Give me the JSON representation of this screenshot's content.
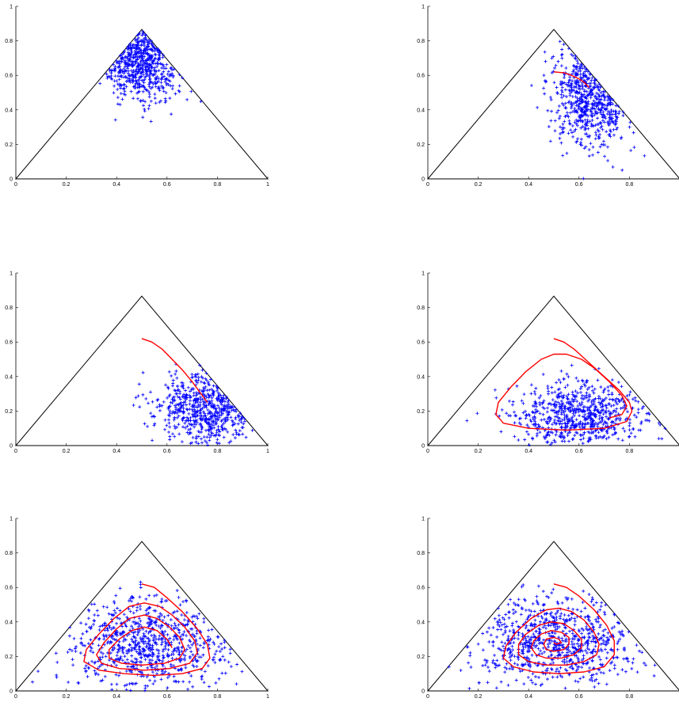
{
  "chart_data": [
    {
      "type": "scatter",
      "panel": "top-left",
      "x_ticks": [
        "0",
        "0.2",
        "0.4",
        "0.6",
        "0.8",
        "1"
      ],
      "y_ticks": [
        "0",
        "0.2",
        "0.4",
        "0.6",
        "0.8",
        "1"
      ],
      "xlim": [
        0,
        1
      ],
      "ylim": [
        0,
        1
      ],
      "simplex": [
        [
          0,
          0
        ],
        [
          1,
          0
        ],
        [
          0.5,
          0.866
        ]
      ],
      "cloud": {
        "n": 600,
        "cx": 0.5,
        "cy": 0.7,
        "sx": 0.08,
        "sy": 0.12
      },
      "trajectory": [],
      "colors": {
        "points": "#0000ff",
        "trajectory": "#ff0000",
        "simplex": "#000000"
      }
    },
    {
      "type": "scatter",
      "panel": "top-right",
      "x_ticks": [
        "0",
        "0.2",
        "0.4",
        "0.6",
        "0.8"
      ],
      "y_ticks": [
        "0",
        "0.2",
        "0.4",
        "0.6",
        "0.8",
        "1"
      ],
      "xlim": [
        0,
        1
      ],
      "ylim": [
        0,
        1
      ],
      "simplex": [
        [
          0,
          0
        ],
        [
          1,
          0
        ],
        [
          0.5,
          0.866
        ]
      ],
      "cloud": {
        "n": 600,
        "cx": 0.66,
        "cy": 0.52,
        "sx": 0.08,
        "sy": 0.16
      },
      "trajectory": [
        [
          0.5,
          0.62
        ],
        [
          0.54,
          0.615
        ],
        [
          0.57,
          0.6
        ],
        [
          0.6,
          0.58
        ],
        [
          0.62,
          0.56
        ],
        [
          0.64,
          0.53
        ]
      ],
      "colors": {
        "points": "#0000ff",
        "trajectory": "#ff0000",
        "simplex": "#000000"
      }
    },
    {
      "type": "scatter",
      "panel": "middle-left",
      "x_ticks": [
        "0",
        "0.2",
        "0.4",
        "0.6",
        "0.8",
        "1"
      ],
      "y_ticks": [
        "0",
        "0.2",
        "0.4",
        "0.6",
        "0.8",
        "1"
      ],
      "xlim": [
        0,
        1
      ],
      "ylim": [
        0,
        1
      ],
      "simplex": [
        [
          0,
          0
        ],
        [
          1,
          0
        ],
        [
          0.5,
          0.866
        ]
      ],
      "cloud": {
        "n": 600,
        "cx": 0.76,
        "cy": 0.22,
        "sx": 0.1,
        "sy": 0.1
      },
      "trajectory": [
        [
          0.5,
          0.62
        ],
        [
          0.54,
          0.6
        ],
        [
          0.58,
          0.56
        ],
        [
          0.62,
          0.5
        ],
        [
          0.66,
          0.44
        ],
        [
          0.7,
          0.37
        ],
        [
          0.73,
          0.31
        ],
        [
          0.76,
          0.25
        ]
      ],
      "colors": {
        "points": "#0000ff",
        "trajectory": "#ff0000",
        "simplex": "#000000"
      }
    },
    {
      "type": "scatter",
      "panel": "middle-right",
      "x_ticks": [
        "0",
        "0.2",
        "0.4",
        "0.6",
        "0.8"
      ],
      "y_ticks": [
        "0",
        "0.2",
        "0.4",
        "0.6",
        "0.8",
        "1"
      ],
      "xlim": [
        0,
        1
      ],
      "ylim": [
        0,
        1
      ],
      "simplex": [
        [
          0,
          0
        ],
        [
          1,
          0
        ],
        [
          0.5,
          0.866
        ]
      ],
      "cloud": {
        "n": 700,
        "cx": 0.6,
        "cy": 0.18,
        "sx": 0.14,
        "sy": 0.1
      },
      "trajectory": [
        [
          0.5,
          0.62
        ],
        [
          0.54,
          0.6
        ],
        [
          0.58,
          0.56
        ],
        [
          0.64,
          0.48
        ],
        [
          0.7,
          0.4
        ],
        [
          0.76,
          0.32
        ],
        [
          0.8,
          0.25
        ],
        [
          0.81,
          0.2
        ],
        [
          0.79,
          0.14
        ],
        [
          0.7,
          0.1
        ],
        [
          0.55,
          0.09
        ],
        [
          0.4,
          0.1
        ],
        [
          0.3,
          0.13
        ],
        [
          0.27,
          0.18
        ],
        [
          0.28,
          0.25
        ],
        [
          0.33,
          0.34
        ],
        [
          0.39,
          0.43
        ],
        [
          0.45,
          0.5
        ],
        [
          0.5,
          0.53
        ],
        [
          0.55,
          0.53
        ],
        [
          0.61,
          0.5
        ],
        [
          0.66,
          0.45
        ],
        [
          0.72,
          0.37
        ],
        [
          0.77,
          0.29
        ],
        [
          0.79,
          0.23
        ],
        [
          0.77,
          0.18
        ],
        [
          0.72,
          0.16
        ]
      ],
      "colors": {
        "points": "#0000ff",
        "trajectory": "#ff0000",
        "simplex": "#000000"
      }
    },
    {
      "type": "scatter",
      "panel": "bottom-left",
      "x_ticks": [
        "0",
        "0.2",
        "0.4",
        "0.6",
        "0.8",
        "1"
      ],
      "y_ticks": [
        "0",
        "0.2",
        "0.4",
        "0.6",
        "0.8",
        "1"
      ],
      "xlim": [
        0,
        1
      ],
      "ylim": [
        0,
        1
      ],
      "simplex": [
        [
          0,
          0
        ],
        [
          1,
          0
        ],
        [
          0.5,
          0.866
        ]
      ],
      "cloud": {
        "n": 800,
        "cx": 0.52,
        "cy": 0.28,
        "sx": 0.16,
        "sy": 0.13
      },
      "trajectory": [
        [
          0.5,
          0.62
        ],
        [
          0.55,
          0.6
        ],
        [
          0.6,
          0.54
        ],
        [
          0.66,
          0.46
        ],
        [
          0.72,
          0.36
        ],
        [
          0.76,
          0.27
        ],
        [
          0.77,
          0.19
        ],
        [
          0.74,
          0.13
        ],
        [
          0.66,
          0.1
        ],
        [
          0.55,
          0.09
        ],
        [
          0.43,
          0.1
        ],
        [
          0.33,
          0.12
        ],
        [
          0.27,
          0.17
        ],
        [
          0.28,
          0.24
        ],
        [
          0.33,
          0.33
        ],
        [
          0.39,
          0.42
        ],
        [
          0.45,
          0.49
        ],
        [
          0.51,
          0.51
        ],
        [
          0.57,
          0.49
        ],
        [
          0.62,
          0.44
        ],
        [
          0.67,
          0.37
        ],
        [
          0.71,
          0.29
        ],
        [
          0.72,
          0.22
        ],
        [
          0.69,
          0.16
        ],
        [
          0.61,
          0.13
        ],
        [
          0.51,
          0.12
        ],
        [
          0.41,
          0.13
        ],
        [
          0.34,
          0.16
        ],
        [
          0.32,
          0.21
        ],
        [
          0.35,
          0.28
        ],
        [
          0.4,
          0.36
        ],
        [
          0.45,
          0.42
        ],
        [
          0.51,
          0.44
        ],
        [
          0.56,
          0.42
        ],
        [
          0.61,
          0.37
        ],
        [
          0.65,
          0.31
        ],
        [
          0.67,
          0.24
        ],
        [
          0.65,
          0.19
        ],
        [
          0.59,
          0.16
        ],
        [
          0.5,
          0.15
        ],
        [
          0.42,
          0.16
        ],
        [
          0.37,
          0.19
        ],
        [
          0.37,
          0.24
        ],
        [
          0.41,
          0.3
        ],
        [
          0.46,
          0.35
        ],
        [
          0.51,
          0.37
        ],
        [
          0.56,
          0.35
        ],
        [
          0.6,
          0.3
        ],
        [
          0.62,
          0.25
        ]
      ],
      "colors": {
        "points": "#0000ff",
        "trajectory": "#ff0000",
        "simplex": "#000000"
      }
    },
    {
      "type": "scatter",
      "panel": "bottom-right",
      "x_ticks": [
        "0",
        "0.2",
        "0.4",
        "0.6",
        "0.8"
      ],
      "y_ticks": [
        "0",
        "0.2",
        "0.4",
        "0.6",
        "0.8",
        "1"
      ],
      "xlim": [
        0,
        1
      ],
      "ylim": [
        0,
        1
      ],
      "simplex": [
        [
          0,
          0
        ],
        [
          1,
          0
        ],
        [
          0.5,
          0.866
        ]
      ],
      "cloud": {
        "n": 800,
        "cx": 0.5,
        "cy": 0.29,
        "sx": 0.17,
        "sy": 0.13
      },
      "trajectory": [
        [
          0.5,
          0.62
        ],
        [
          0.55,
          0.6
        ],
        [
          0.6,
          0.55
        ],
        [
          0.66,
          0.47
        ],
        [
          0.71,
          0.38
        ],
        [
          0.74,
          0.29
        ],
        [
          0.74,
          0.21
        ],
        [
          0.7,
          0.14
        ],
        [
          0.62,
          0.11
        ],
        [
          0.52,
          0.1
        ],
        [
          0.42,
          0.11
        ],
        [
          0.34,
          0.14
        ],
        [
          0.3,
          0.19
        ],
        [
          0.31,
          0.26
        ],
        [
          0.35,
          0.34
        ],
        [
          0.41,
          0.42
        ],
        [
          0.47,
          0.47
        ],
        [
          0.52,
          0.48
        ],
        [
          0.57,
          0.46
        ],
        [
          0.62,
          0.41
        ],
        [
          0.66,
          0.34
        ],
        [
          0.68,
          0.27
        ],
        [
          0.67,
          0.21
        ],
        [
          0.62,
          0.17
        ],
        [
          0.55,
          0.15
        ],
        [
          0.47,
          0.15
        ],
        [
          0.4,
          0.17
        ],
        [
          0.36,
          0.21
        ],
        [
          0.36,
          0.27
        ],
        [
          0.39,
          0.33
        ],
        [
          0.44,
          0.38
        ],
        [
          0.49,
          0.4
        ],
        [
          0.54,
          0.39
        ],
        [
          0.58,
          0.35
        ],
        [
          0.61,
          0.3
        ],
        [
          0.61,
          0.25
        ],
        [
          0.58,
          0.21
        ],
        [
          0.53,
          0.19
        ],
        [
          0.47,
          0.19
        ],
        [
          0.43,
          0.21
        ],
        [
          0.41,
          0.25
        ],
        [
          0.42,
          0.29
        ],
        [
          0.45,
          0.33
        ],
        [
          0.49,
          0.35
        ],
        [
          0.53,
          0.34
        ],
        [
          0.56,
          0.31
        ],
        [
          0.56,
          0.27
        ],
        [
          0.54,
          0.24
        ],
        [
          0.5,
          0.23
        ],
        [
          0.47,
          0.24
        ],
        [
          0.46,
          0.27
        ],
        [
          0.47,
          0.3
        ],
        [
          0.5,
          0.31
        ],
        [
          0.52,
          0.3
        ],
        [
          0.53,
          0.28
        ],
        [
          0.51,
          0.27
        ],
        [
          0.5,
          0.28
        ]
      ],
      "colors": {
        "points": "#0000ff",
        "trajectory": "#ff0000",
        "simplex": "#000000"
      }
    }
  ]
}
